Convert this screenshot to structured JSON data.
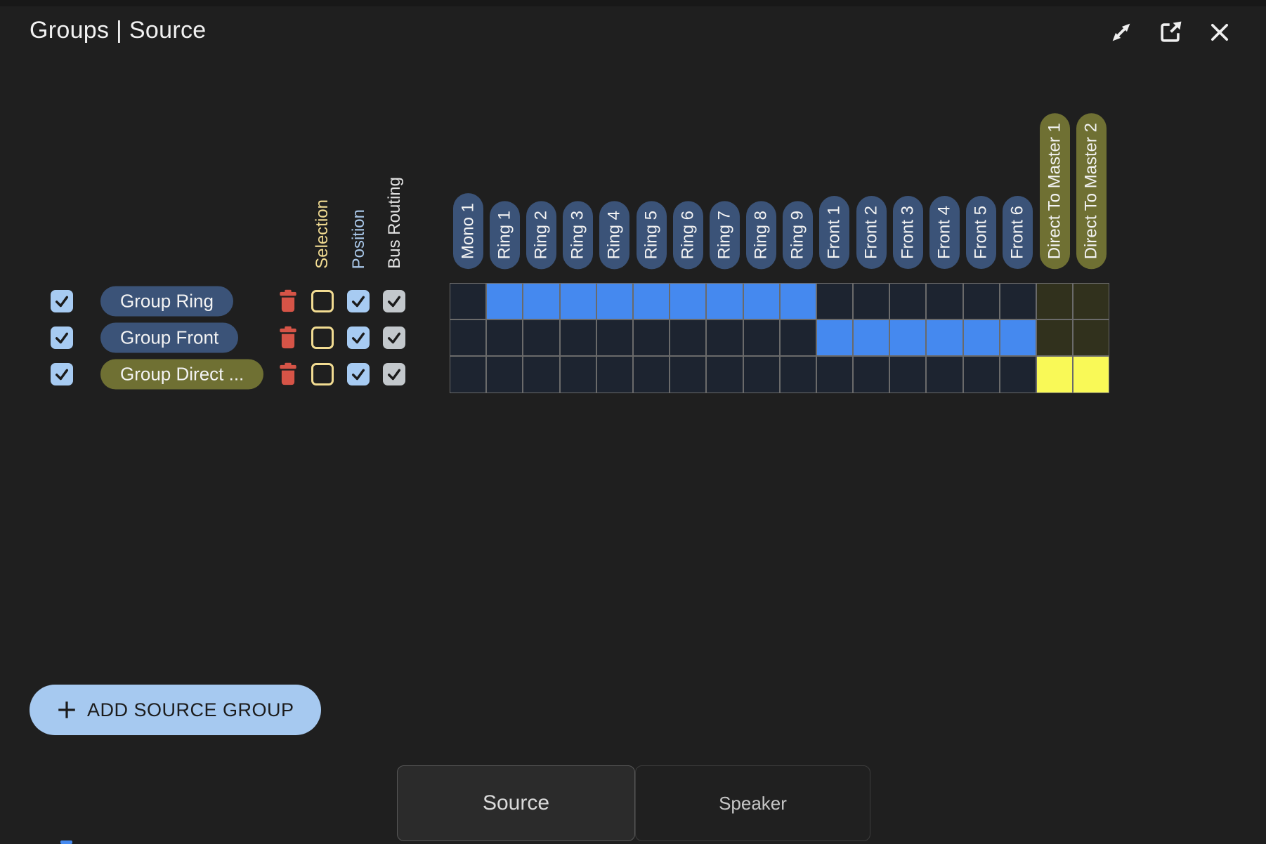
{
  "window": {
    "title": "Groups | Source",
    "icons": [
      "fullscreen-icon",
      "open-new-window-icon",
      "close-icon"
    ]
  },
  "colors": {
    "bg": "#1f1f1f",
    "pill_blue": "#3b5378",
    "pill_olive": "#6f7033",
    "cell_off": "#1d2430",
    "cell_off_master": "#31311d",
    "cell_on": "#4589ef",
    "cell_on_master": "#f9f957",
    "gridline": "#6a6a6a",
    "cb_blue": "#a7cbf2",
    "cb_gray": "#c3c8cc",
    "cb_yellow": "#f2dc92",
    "label_blue": "#a9c7e8",
    "trash_red": "#d65447",
    "accent_light_blue": "#a6c9f0"
  },
  "matrix": {
    "checkbox_columns": [
      {
        "label": "Selection"
      },
      {
        "label": "Position"
      },
      {
        "label": "Bus Routing"
      }
    ],
    "bus_columns": [
      {
        "label": "Mono 1",
        "type": "bus"
      },
      {
        "label": "Ring 1",
        "type": "bus"
      },
      {
        "label": "Ring 2",
        "type": "bus"
      },
      {
        "label": "Ring 3",
        "type": "bus"
      },
      {
        "label": "Ring 4",
        "type": "bus"
      },
      {
        "label": "Ring 5",
        "type": "bus"
      },
      {
        "label": "Ring 6",
        "type": "bus"
      },
      {
        "label": "Ring 7",
        "type": "bus"
      },
      {
        "label": "Ring 8",
        "type": "bus"
      },
      {
        "label": "Ring 9",
        "type": "bus"
      },
      {
        "label": "Front 1",
        "type": "bus"
      },
      {
        "label": "Front 2",
        "type": "bus"
      },
      {
        "label": "Front 3",
        "type": "bus"
      },
      {
        "label": "Front 4",
        "type": "bus"
      },
      {
        "label": "Front 5",
        "type": "bus"
      },
      {
        "label": "Front 6",
        "type": "bus"
      },
      {
        "label": "Direct To Master 1",
        "type": "master"
      },
      {
        "label": "Direct To Master 2",
        "type": "master"
      }
    ],
    "rows": [
      {
        "label": "Group Ring",
        "color": "blue",
        "enabled": true,
        "selection": false,
        "position": true,
        "bus_routing": true,
        "routing": [
          0,
          1,
          1,
          1,
          1,
          1,
          1,
          1,
          1,
          1,
          0,
          0,
          0,
          0,
          0,
          0,
          0,
          0
        ]
      },
      {
        "label": "Group Front",
        "color": "blue",
        "enabled": true,
        "selection": false,
        "position": true,
        "bus_routing": true,
        "routing": [
          0,
          0,
          0,
          0,
          0,
          0,
          0,
          0,
          0,
          0,
          1,
          1,
          1,
          1,
          1,
          1,
          0,
          0
        ]
      },
      {
        "label": "Group Direct ...",
        "color": "olive",
        "enabled": true,
        "selection": false,
        "position": true,
        "bus_routing": true,
        "routing": [
          0,
          0,
          0,
          0,
          0,
          0,
          0,
          0,
          0,
          0,
          0,
          0,
          0,
          0,
          0,
          0,
          1,
          1
        ]
      }
    ]
  },
  "actions": {
    "add_source_group": "ADD SOURCE GROUP"
  },
  "tabs": [
    {
      "label": "Source",
      "active": true
    },
    {
      "label": "Speaker",
      "active": false
    }
  ]
}
